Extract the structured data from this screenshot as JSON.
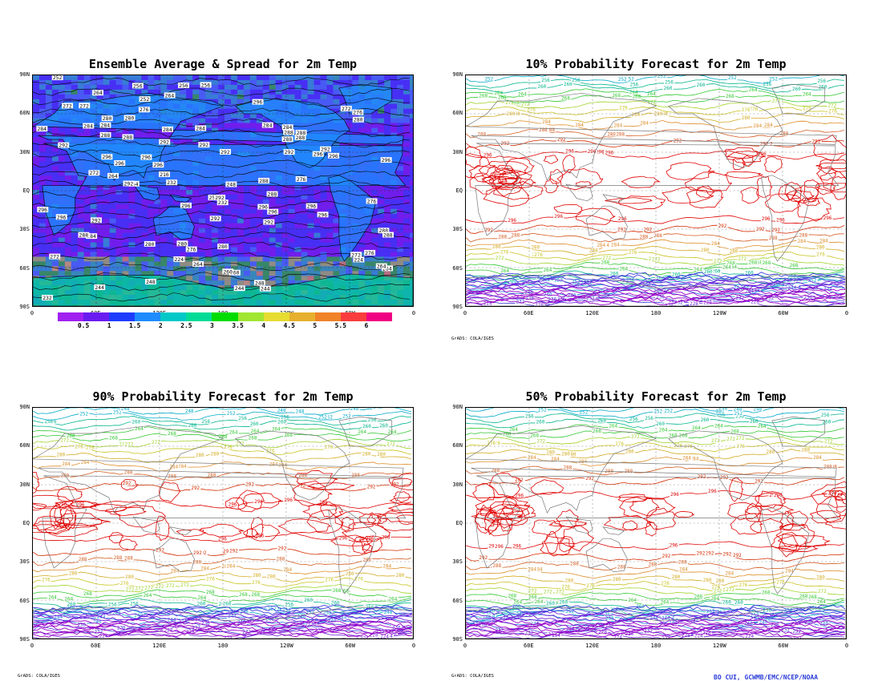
{
  "panels": [
    {
      "id": "spread",
      "title": "Ensemble Average & Spread for 2m Temp",
      "type": "shaded"
    },
    {
      "id": "p10",
      "title": "10% Probability Forecast for 2m Temp",
      "type": "contour"
    },
    {
      "id": "p90",
      "title": "90% Probability Forecast for 2m Temp",
      "type": "contour"
    },
    {
      "id": "p50",
      "title": "50% Probability Forecast for 2m Temp",
      "type": "contour"
    }
  ],
  "lat_labels": [
    "90N",
    "60N",
    "30N",
    "EQ",
    "30S",
    "60S",
    "90S"
  ],
  "lon_labels": [
    "0",
    "60E",
    "120E",
    "180",
    "120W",
    "60W",
    "0"
  ],
  "colorbar": {
    "labels": [
      "0.5",
      "1",
      "1.5",
      "2",
      "2.5",
      "3",
      "3.5",
      "4",
      "4.5",
      "5",
      "5.5",
      "6"
    ],
    "colors": [
      "#a020f0",
      "#6a1cf0",
      "#1e3cff",
      "#1e8cff",
      "#00c8c8",
      "#00dc96",
      "#00dc00",
      "#a0e632",
      "#e6dc32",
      "#e6af2d",
      "#f08228",
      "#fa3c3c",
      "#f00082"
    ]
  },
  "contour_labels_spread": [
    "272",
    "276",
    "280",
    "284",
    "288",
    "292",
    "296",
    "264",
    "260",
    "256",
    "252",
    "248",
    "244",
    "240",
    "232",
    "228",
    "224",
    "220",
    "216"
  ],
  "contour_labels_prob": [
    "272",
    "276",
    "280",
    "284",
    "288",
    "292",
    "296",
    "264",
    "260",
    "256",
    "252",
    "248",
    "244",
    "240",
    "236",
    "232",
    "228",
    "224",
    "220",
    "216",
    "212"
  ],
  "credits": {
    "grads": "GrADS: COLA/IGES",
    "author": "BO CUI, GCWMB/EMC/NCEP/NOAA"
  },
  "colors": {
    "ocean_mean": "#7a2de0",
    "land_outline": "#000000",
    "coast_prob": "#777777"
  }
}
